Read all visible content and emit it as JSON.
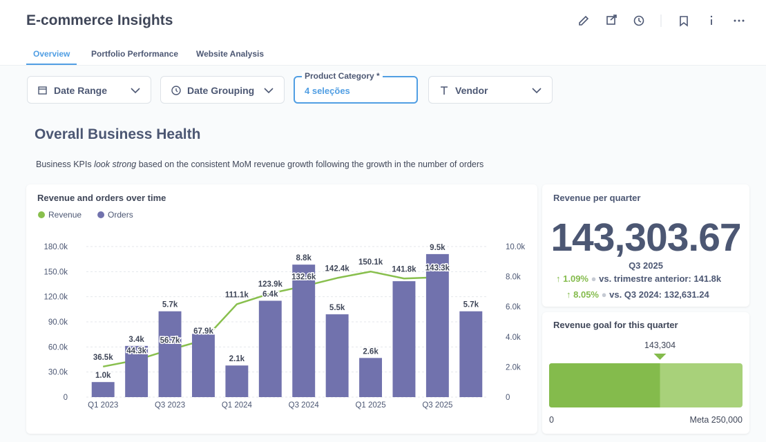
{
  "header": {
    "title": "E-commerce Insights"
  },
  "tabs": [
    "Overview",
    "Portfolio Performance",
    "Website Analysis"
  ],
  "filters": [
    {
      "label": "Date Range"
    },
    {
      "label": "Date Grouping"
    },
    {
      "label": "Product Category *",
      "value": "4 seleções"
    },
    {
      "label": "Vendor"
    }
  ],
  "section": {
    "title": "Overall Business Health",
    "description": [
      "Business KPIs ",
      "look strong",
      " based on the consistent MoM revenue growth following the growth in the number of orders"
    ]
  },
  "kpi": {
    "title": "Revenue per quarter",
    "value": "143,303.67",
    "period": "Q3 2025",
    "comparisons": [
      {
        "change": "1.09%",
        "text": "vs. trimestre anterior: 141.8k"
      },
      {
        "change": "8.05%",
        "text": "vs. Q3 2024: 132,631.24"
      }
    ]
  },
  "chart_data": [
    {
      "type": "combo",
      "title": "Revenue and orders over time",
      "categories": [
        "Q1 2023",
        null,
        "Q3 2023",
        null,
        "Q1 2024",
        null,
        "Q3 2024",
        null,
        "Q1 2025",
        null,
        "Q3 2025",
        null
      ],
      "series": [
        {
          "name": "Revenue",
          "type": "line",
          "color": "#88bf4d",
          "values": [
            36500,
            44300,
            56700,
            67900,
            111100,
            123900,
            132600,
            142400,
            150100,
            141800,
            143300,
            null
          ],
          "value_labels": [
            "36.5k",
            "44.3k",
            "56.7k",
            "67.9k",
            "111.1k",
            "123.9k",
            "132.6k",
            "142.4k",
            "150.1k",
            "141.8k",
            "143.3k",
            null
          ]
        },
        {
          "name": "Orders",
          "type": "bar",
          "color": "#7172ad",
          "axis": "y2",
          "values": [
            1000,
            3400,
            5700,
            4200,
            2100,
            6400,
            8800,
            5500,
            2600,
            7700,
            9500,
            5700
          ],
          "value_labels": [
            "1.0k",
            "3.4k",
            "5.7k",
            null,
            "2.1k",
            "6.4k",
            "8.8k",
            "5.5k",
            "2.6k",
            null,
            "9.5k",
            "5.7k"
          ]
        }
      ],
      "ylim": [
        0,
        180000
      ],
      "yticks": [
        0,
        {
          "value": 30000,
          "label": "30.0k"
        },
        {
          "value": 60000,
          "label": "60.0k"
        },
        {
          "value": 90000,
          "label": "90.0k"
        },
        {
          "value": 120000,
          "label": "120.0k"
        },
        {
          "value": 150000,
          "label": "150.0k"
        },
        {
          "value": 180000,
          "label": "180.0k"
        }
      ],
      "y2lim": [
        0,
        10000
      ],
      "y2ticks": [
        0,
        {
          "value": 2000,
          "label": "2.0k"
        },
        {
          "value": 4000,
          "label": "4.0k"
        },
        {
          "value": 6000,
          "label": "6.0k"
        },
        {
          "value": 8000,
          "label": "8.0k"
        },
        {
          "value": 10000,
          "label": "10.0k"
        }
      ],
      "grid": true,
      "legend": "top-left"
    },
    {
      "type": "progress",
      "title": "Revenue goal for this quarter",
      "value": 143304,
      "value_label": "143,304",
      "xlim": [
        0,
        250000
      ],
      "xticks": [
        0,
        {
          "value": 250000,
          "label": "Meta 250,000"
        }
      ],
      "color": "#84bb4c",
      "track_color": "#a8d17a"
    }
  ]
}
